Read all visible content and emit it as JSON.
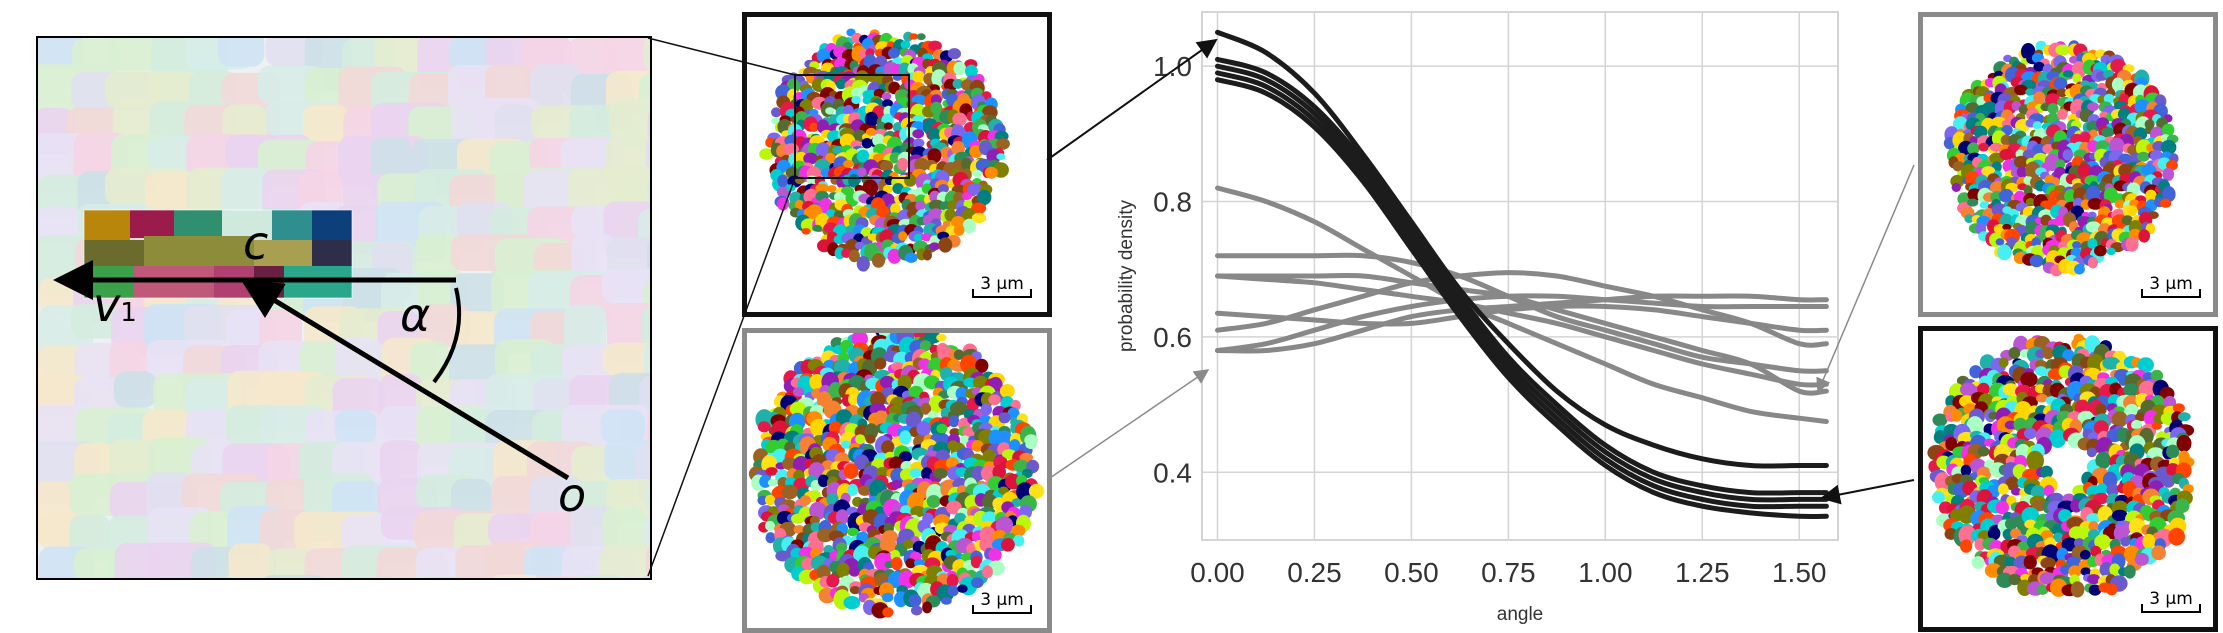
{
  "zoom_panel": {
    "label_c": "c",
    "label_v": "v",
    "label_v_sub": "1",
    "label_alpha": "α",
    "label_o": "o"
  },
  "thumbnails": [
    {
      "id": "top-middle",
      "scale_label": "3 µm",
      "frame": "black"
    },
    {
      "id": "bottom-middle",
      "scale_label": "3 µm",
      "frame": "gray"
    },
    {
      "id": "top-right",
      "scale_label": "3 µm",
      "frame": "gray"
    },
    {
      "id": "bottom-right",
      "scale_label": "3 µm",
      "frame": "black"
    }
  ],
  "colors": {
    "dark_series": "#1c1c1c",
    "light_series": "#888888",
    "grid": "#d4d4d4",
    "black_frame": "#111111",
    "gray_frame": "#8a8a8a"
  },
  "chart_data": {
    "type": "line",
    "xlabel": "angle",
    "ylabel": "probability density",
    "xlim": [
      -0.04,
      1.6
    ],
    "ylim": [
      0.3,
      1.08
    ],
    "xticks": [
      "0.00",
      "0.25",
      "0.50",
      "0.75",
      "1.00",
      "1.25",
      "1.50"
    ],
    "yticks": [
      "0.4",
      "0.6",
      "0.8",
      "1.0"
    ],
    "grid": true,
    "x": [
      0,
      0.125,
      0.25,
      0.375,
      0.5,
      0.625,
      0.75,
      0.875,
      1.0,
      1.125,
      1.25,
      1.375,
      1.5,
      1.57
    ],
    "series": [
      {
        "group": "dark",
        "values": [
          1.05,
          1.02,
          0.96,
          0.87,
          0.77,
          0.67,
          0.59,
          0.52,
          0.47,
          0.44,
          0.42,
          0.41,
          0.41,
          0.41
        ]
      },
      {
        "group": "dark",
        "values": [
          1.01,
          0.99,
          0.94,
          0.86,
          0.76,
          0.66,
          0.57,
          0.5,
          0.44,
          0.4,
          0.38,
          0.37,
          0.37,
          0.37
        ]
      },
      {
        "group": "dark",
        "values": [
          1.0,
          0.98,
          0.93,
          0.85,
          0.75,
          0.65,
          0.56,
          0.49,
          0.43,
          0.39,
          0.37,
          0.36,
          0.36,
          0.36
        ]
      },
      {
        "group": "dark",
        "values": [
          0.99,
          0.97,
          0.92,
          0.84,
          0.74,
          0.64,
          0.55,
          0.48,
          0.42,
          0.38,
          0.36,
          0.35,
          0.35,
          0.35
        ]
      },
      {
        "group": "dark",
        "values": [
          0.98,
          0.96,
          0.91,
          0.83,
          0.73,
          0.63,
          0.54,
          0.47,
          0.41,
          0.37,
          0.35,
          0.34,
          0.335,
          0.335
        ]
      },
      {
        "group": "light",
        "values": [
          0.82,
          0.8,
          0.77,
          0.73,
          0.69,
          0.65,
          0.62,
          0.59,
          0.56,
          0.53,
          0.51,
          0.49,
          0.48,
          0.475
        ]
      },
      {
        "group": "light",
        "values": [
          0.72,
          0.72,
          0.72,
          0.72,
          0.71,
          0.69,
          0.66,
          0.63,
          0.61,
          0.59,
          0.57,
          0.56,
          0.55,
          0.55
        ]
      },
      {
        "group": "light",
        "values": [
          0.69,
          0.69,
          0.69,
          0.69,
          0.68,
          0.67,
          0.66,
          0.64,
          0.62,
          0.6,
          0.58,
          0.56,
          0.52,
          0.52
        ]
      },
      {
        "group": "light",
        "values": [
          0.69,
          0.685,
          0.68,
          0.67,
          0.66,
          0.65,
          0.635,
          0.62,
          0.6,
          0.58,
          0.56,
          0.545,
          0.53,
          0.53
        ]
      },
      {
        "group": "light",
        "values": [
          0.635,
          0.63,
          0.625,
          0.62,
          0.62,
          0.63,
          0.64,
          0.645,
          0.645,
          0.64,
          0.63,
          0.62,
          0.61,
          0.61
        ]
      },
      {
        "group": "light",
        "values": [
          0.61,
          0.62,
          0.64,
          0.66,
          0.68,
          0.69,
          0.695,
          0.69,
          0.675,
          0.66,
          0.64,
          0.62,
          0.59,
          0.59
        ]
      },
      {
        "group": "light",
        "values": [
          0.58,
          0.59,
          0.61,
          0.63,
          0.645,
          0.655,
          0.66,
          0.66,
          0.655,
          0.65,
          0.645,
          0.645,
          0.645,
          0.645
        ]
      },
      {
        "group": "light",
        "values": [
          0.58,
          0.58,
          0.59,
          0.61,
          0.63,
          0.64,
          0.645,
          0.65,
          0.655,
          0.66,
          0.66,
          0.66,
          0.655,
          0.655
        ]
      }
    ]
  }
}
